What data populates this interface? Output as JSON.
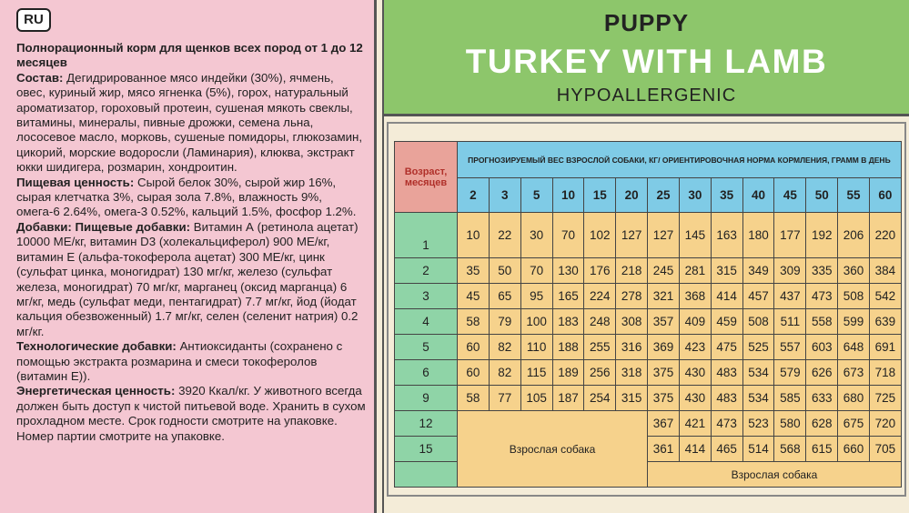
{
  "left": {
    "lang": "RU",
    "paragraphs": [
      {
        "label": "Полнорационный корм для щенков всех пород от 1 до 12 месяцев"
      },
      {
        "label": "Состав:",
        "text": "Дегидрированное мясо индейки (30%), ячмень, овес, куриный жир, мясо ягненка (5%), горох, натуральный ароматизатор, гороховый протеин, сушеная мякоть свеклы, витамины, минералы, пивные дрожжи, семена льна, лососевое масло, морковь, сушеные помидоры, глюкозамин, цикорий, морские водоросли (Ламинария), клюква, экстракт юкки шидигера, розмарин, хондроитин."
      },
      {
        "label": "Пищевая ценность:",
        "text": "Сырой белок 30%, сырой жир 16%, сырая клетчатка 3%, сырая зола 7.8%, влажность 9%, омега-6 2.64%, омега-3 0.52%, кальций 1.5%, фосфор 1.2%."
      },
      {
        "label": "Добавки: Пищевые добавки:",
        "text": "Витамин А (ретинола ацетат) 10000 МЕ/кг, витамин D3 (холекальциферол) 900 МЕ/кг, витамин Е (альфа-токоферола ацетат) 300 МЕ/кг, цинк (сульфат цинка, моногидрат) 130 мг/кг, железо (сульфат железа, моногидрат) 70 мг/кг, марганец (оксид марганца) 6 мг/кг, медь (сульфат меди, пентагидрат) 7.7 мг/кг, йод (йодат кальция обезвоженный) 1.7 мг/кг, селен (селенит натрия) 0.2 мг/кг."
      },
      {
        "label": "Технологические добавки:",
        "text": "Антиоксиданты (сохранено с помощью экстракта розмарина и смеси токоферолов (витамин Е))."
      },
      {
        "label": "Энергетическая ценность:",
        "text": "3920 Ккал/кг. У животного всегда должен быть доступ к чистой питьевой воде. Хранить в сухом прохладном месте. Срок годности смотрите на упаковке. Номер партии смотрите на упаковке."
      }
    ]
  },
  "header": {
    "line1": "PUPPY",
    "line2": "TURKEY WITH LAMB",
    "line3": "HYPOALLERGENIC"
  },
  "table": {
    "corner": "Возраст, месяцев",
    "title": "ПРОГНОЗИРУЕМЫЙ ВЕС ВЗРОСЛОЙ СОБАКИ, КГ/ ОРИЕНТИРОВОЧНАЯ НОРМА КОРМЛЕНИЯ, ГРАММ В ДЕНЬ",
    "weights": [
      2,
      3,
      5,
      10,
      15,
      20,
      25,
      30,
      35,
      40,
      45,
      50,
      55,
      60
    ],
    "rows": [
      {
        "age": "1",
        "values": [
          10,
          22,
          30,
          70,
          102,
          127,
          127,
          145,
          163,
          180,
          177,
          192,
          206,
          220
        ]
      },
      {
        "age": "2",
        "values": [
          35,
          50,
          70,
          130,
          176,
          218,
          245,
          281,
          315,
          349,
          309,
          335,
          360,
          384
        ]
      },
      {
        "age": "3",
        "values": [
          45,
          65,
          95,
          165,
          224,
          278,
          321,
          368,
          414,
          457,
          437,
          473,
          508,
          542
        ]
      },
      {
        "age": "4",
        "values": [
          58,
          79,
          100,
          183,
          248,
          308,
          357,
          409,
          459,
          508,
          511,
          558,
          599,
          639
        ]
      },
      {
        "age": "5",
        "values": [
          60,
          82,
          110,
          188,
          255,
          316,
          369,
          423,
          475,
          525,
          557,
          603,
          648,
          691
        ]
      },
      {
        "age": "6",
        "values": [
          60,
          82,
          115,
          189,
          256,
          318,
          375,
          430,
          483,
          534,
          579,
          626,
          673,
          718
        ]
      },
      {
        "age": "9",
        "values": [
          58,
          77,
          105,
          187,
          254,
          315,
          375,
          430,
          483,
          534,
          585,
          633,
          680,
          725
        ]
      },
      {
        "age": "12",
        "values": [
          367,
          421,
          473,
          523,
          580,
          628,
          675,
          720
        ]
      },
      {
        "age": "15",
        "values": [
          361,
          414,
          465,
          514,
          568,
          615,
          660,
          705
        ]
      }
    ],
    "adult_labels": [
      "Взрослая собака",
      "Взрослая собака"
    ]
  }
}
